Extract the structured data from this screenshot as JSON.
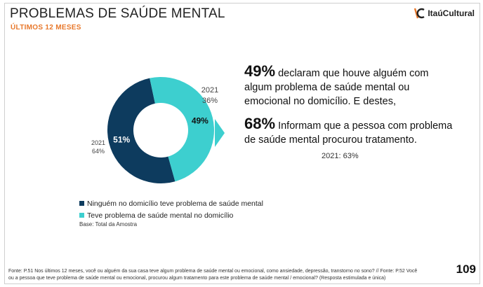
{
  "header": {
    "title": "PROBLEMAS DE SAÚDE MENTAL",
    "subtitle": "ÚLTIMOS 12 MESES",
    "logo_text": "ItaúCultural"
  },
  "colors": {
    "dark_series": "#0d3b5e",
    "light_series": "#3dcfcf",
    "accent": "#e8782b"
  },
  "chart_data": {
    "type": "pie",
    "variant": "donut",
    "categories": [
      "Ninguém  no domicílio teve problema de saúde mental",
      "Teve problema de saúde mental no domicílio"
    ],
    "values": [
      51,
      49
    ],
    "value_labels": [
      "51%",
      "49%"
    ],
    "comparison": {
      "year": "2021",
      "values": [
        "64%",
        "36%"
      ]
    },
    "legend_position": "bottom-left"
  },
  "callout": {
    "stat1": "49%",
    "text1": " declaram que houve alguém com algum problema de saúde mental ou emocional no domicílio. E destes,",
    "stat2": "68%",
    "text2": " Informam que a pessoa com problema de saúde mental procurou tratamento.",
    "prev_year_note": "2021: 63%"
  },
  "base": "Base: Total da Amostra",
  "footnote": "Fonte: P.51 Nos últimos 12 meses, você ou alguém da sua casa teve algum problema de saúde mental ou emocional, como ansiedade, depressão, transtorno no sono?  // Fonte: P.52 Você ou a pessoa que teve problema de saúde mental ou emocional, procurou algum tratamento para este problema de saúde mental / emocional? (Resposta estimulada e única)",
  "page_number": "109"
}
